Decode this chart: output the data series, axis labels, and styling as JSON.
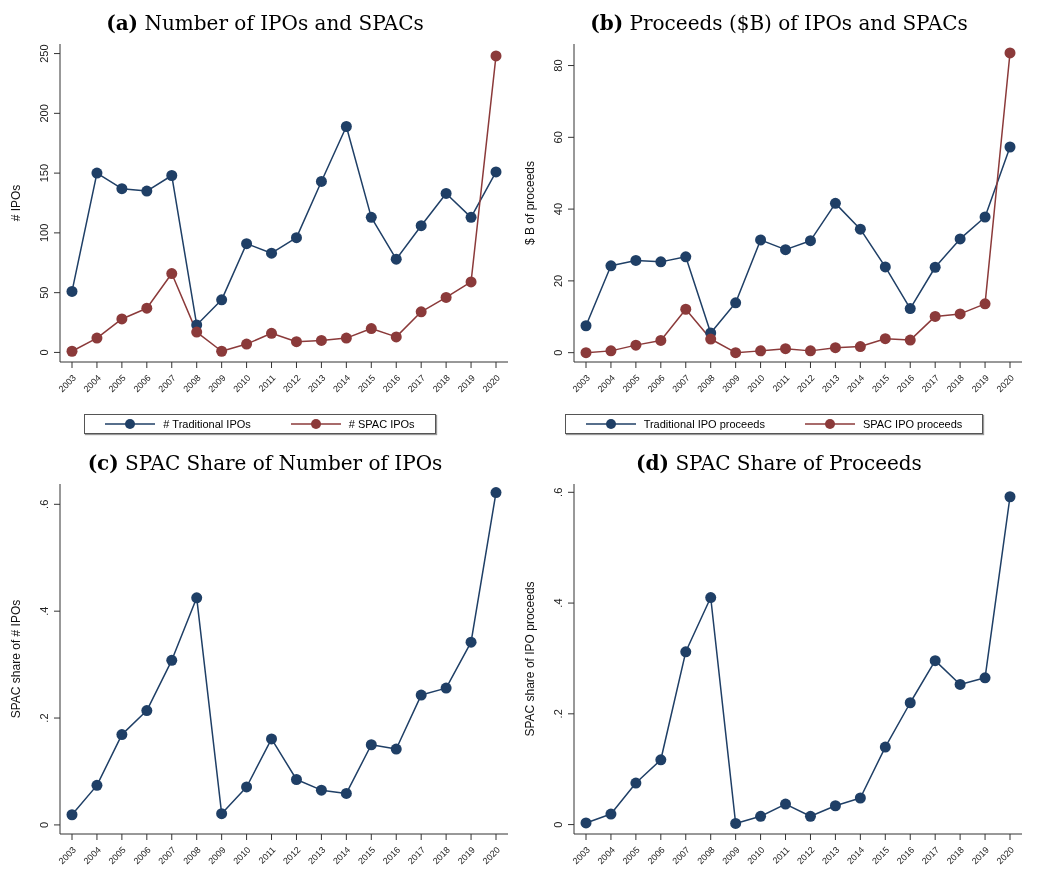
{
  "chart_data": [
    {
      "type": "line",
      "title": "(a) Number of IPOs and SPACs",
      "ylabel": "# IPOs",
      "categories": [
        "2003",
        "2004",
        "2005",
        "2006",
        "2007",
        "2008",
        "2009",
        "2010",
        "2011",
        "2012",
        "2013",
        "2014",
        "2015",
        "2016",
        "2017",
        "2018",
        "2019",
        "2020"
      ],
      "ylim": [
        -8,
        258
      ],
      "yticks": [
        0,
        50,
        100,
        150,
        200,
        250
      ],
      "grid": false,
      "legend": "bottom",
      "marker": "circle",
      "series": [
        {
          "name": "# Traditional IPOs",
          "color": "#1f3f66",
          "values": [
            51,
            150,
            137,
            135,
            148,
            23,
            44,
            91,
            83,
            96,
            143,
            189,
            113,
            78,
            106,
            133,
            113,
            151
          ]
        },
        {
          "name": "# SPAC IPOs",
          "color": "#8b3a3a",
          "values": [
            1,
            12,
            28,
            37,
            66,
            17,
            1,
            7,
            16,
            9,
            10,
            12,
            20,
            13,
            34,
            46,
            59,
            248
          ]
        }
      ]
    },
    {
      "type": "line",
      "title": "(b) Proceeds ($B) of IPOs and SPACs",
      "ylabel": "$ B of proceeds",
      "categories": [
        "2003",
        "2004",
        "2005",
        "2006",
        "2007",
        "2008",
        "2009",
        "2010",
        "2011",
        "2012",
        "2013",
        "2014",
        "2015",
        "2016",
        "2017",
        "2018",
        "2019",
        "2020"
      ],
      "ylim": [
        -2.6,
        86
      ],
      "yticks": [
        0,
        20,
        40,
        60,
        80
      ],
      "grid": false,
      "legend": "bottom",
      "marker": "circle",
      "series": [
        {
          "name": "Traditional IPO proceeds",
          "color": "#1f3f66",
          "values": [
            7.5,
            24.2,
            25.7,
            25.3,
            26.7,
            5.5,
            13.9,
            31.4,
            28.7,
            31.2,
            41.6,
            34.4,
            23.9,
            12.3,
            23.8,
            31.7,
            37.8,
            57.3
          ]
        },
        {
          "name": "SPAC IPO proceeds",
          "color": "#8b3a3a",
          "values": [
            0,
            0.5,
            2.1,
            3.4,
            12.1,
            3.8,
            0,
            0.5,
            1.1,
            0.5,
            1.4,
            1.7,
            3.9,
            3.5,
            10.1,
            10.8,
            13.6,
            83.5
          ]
        }
      ]
    },
    {
      "type": "line",
      "title": "(c) SPAC Share of Number of IPOs",
      "ylabel": "SPAC share of # IPOs",
      "categories": [
        "2003",
        "2004",
        "2005",
        "2006",
        "2007",
        "2008",
        "2009",
        "2010",
        "2011",
        "2012",
        "2013",
        "2014",
        "2015",
        "2016",
        "2017",
        "2018",
        "2019",
        "2020"
      ],
      "ylim": [
        -0.017,
        0.638
      ],
      "yticks": [
        0,
        {
          "value": 0.2,
          "label": ".2"
        },
        {
          "value": 0.4,
          "label": ".4"
        },
        {
          "value": 0.6,
          "label": ".6"
        }
      ],
      "grid": false,
      "legend": false,
      "marker": "circle",
      "series": [
        {
          "color": "#1f3f66",
          "values": [
            0.019,
            0.074,
            0.169,
            0.214,
            0.308,
            0.425,
            0.021,
            0.071,
            0.161,
            0.085,
            0.065,
            0.059,
            0.15,
            0.142,
            0.243,
            0.256,
            0.342,
            0.622
          ]
        }
      ]
    },
    {
      "type": "line",
      "title": "(d) SPAC Share of Proceeds",
      "ylabel": "SPAC share of IPO proceeds",
      "categories": [
        "2003",
        "2004",
        "2005",
        "2006",
        "2007",
        "2008",
        "2009",
        "2010",
        "2011",
        "2012",
        "2013",
        "2014",
        "2015",
        "2016",
        "2017",
        "2018",
        "2019",
        "2020"
      ],
      "ylim": [
        -0.017,
        0.615
      ],
      "yticks": [
        0,
        {
          "value": 0.2,
          "label": ".2"
        },
        {
          "value": 0.4,
          "label": ".4"
        },
        {
          "value": 0.6,
          "label": ".6"
        }
      ],
      "grid": false,
      "legend": false,
      "marker": "circle",
      "series": [
        {
          "color": "#1f3f66",
          "values": [
            0.003,
            0.019,
            0.075,
            0.117,
            0.312,
            0.41,
            0.002,
            0.015,
            0.037,
            0.015,
            0.034,
            0.048,
            0.14,
            0.22,
            0.296,
            0.253,
            0.265,
            0.592
          ]
        }
      ]
    }
  ]
}
